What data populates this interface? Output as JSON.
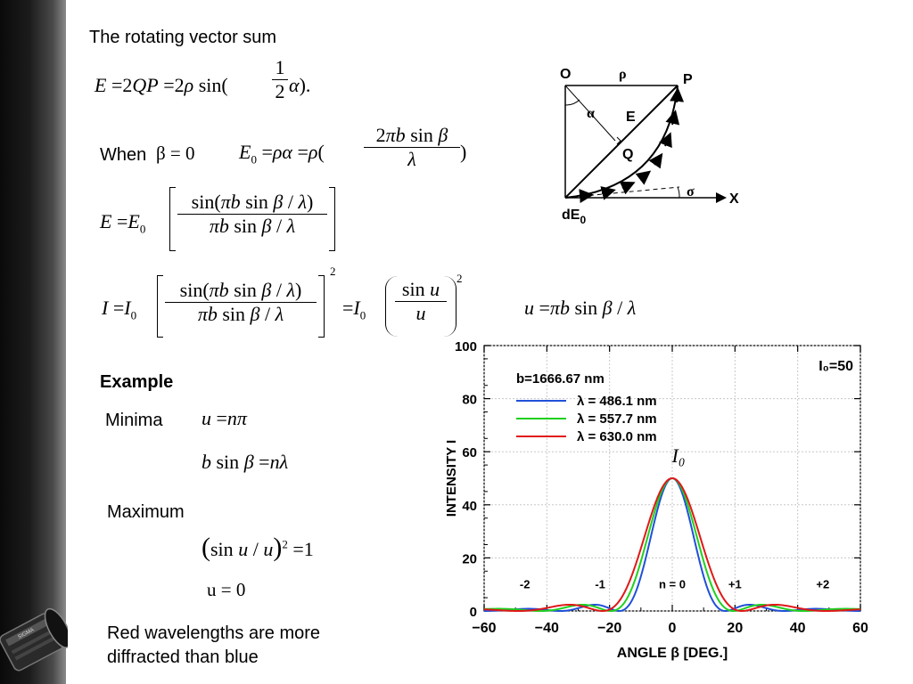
{
  "slide": {
    "heading": "The rotating vector sum",
    "when_label": "When",
    "when_cond": "β = 0",
    "example_label": "Example",
    "minima_label": "Minima",
    "maximum_label": "Maximum",
    "max_u": "u = 0",
    "note_line1": "Red wavelengths are more",
    "note_line2": "diffracted than blue"
  },
  "equations": {
    "eq_E": "E = 2QP = 2ρ sin(½ α).",
    "eq_E0": "E₀ = ρα = ρ(2πb sin β / λ)",
    "eq_E_ratio": "E = E₀ [sin(πb sin β/λ) / (πb sin β/λ)]",
    "eq_I": "I = I₀ [sin(πb sin β/λ) / (πb sin β/λ)]² = I₀ (sin u / u)²",
    "eq_u": "u = πb sin β / λ",
    "eq_min1": "u = nπ",
    "eq_min2": "b sin β = nλ",
    "eq_max": "(sin u / u)² = 1"
  },
  "diagram": {
    "label_O": "O",
    "label_rho": "ρ",
    "label_P": "P",
    "label_alpha": "α",
    "label_E": "E",
    "label_Q": "Q",
    "label_sigma": "σ",
    "label_x": "X",
    "label_dE0": "dE",
    "label_dE0_sub": "0"
  },
  "chart_data": {
    "type": "line",
    "xlabel": "ANGLE β [DEG.]",
    "ylabel": "INTENSITY I",
    "xlim": [
      -60,
      60
    ],
    "ylim": [
      0,
      100
    ],
    "xticks": [
      -60,
      -40,
      -20,
      0,
      20,
      40,
      60
    ],
    "yticks": [
      0,
      20,
      40,
      60,
      80,
      100
    ],
    "legend_placement": "top-left",
    "legend_title": "b=1666.67 nm",
    "corner_label": "I₀=50",
    "peak_label": "I₀",
    "order_labels": [
      {
        "text": "-2",
        "x": -47
      },
      {
        "text": "-1",
        "x": -23
      },
      {
        "text": "n = 0",
        "x": 0
      },
      {
        "text": "+1",
        "x": 20
      },
      {
        "text": "+2",
        "x": 48
      }
    ],
    "I0": 50,
    "b_nm": 1666.67,
    "series": [
      {
        "name": "λ = 486.1 nm",
        "lambda_nm": 486.1,
        "color": "#2050d8"
      },
      {
        "name": "λ = 557.7 nm",
        "lambda_nm": 557.7,
        "color": "#20d020"
      },
      {
        "name": "λ = 630.0 nm",
        "lambda_nm": 630.0,
        "color": "#e01818"
      }
    ]
  }
}
